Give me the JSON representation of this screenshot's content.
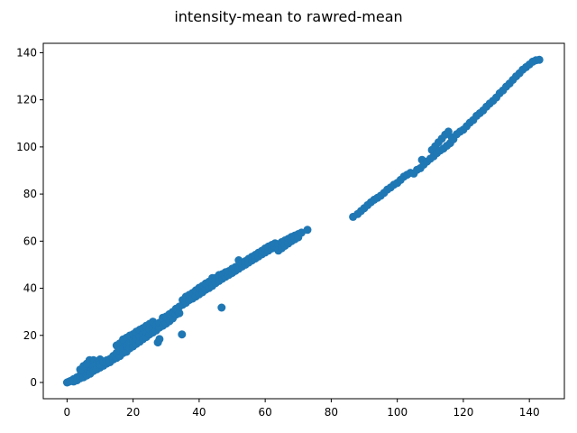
{
  "chart_data": {
    "type": "scatter",
    "title": "intensity-mean to rawred-mean",
    "xlabel": "",
    "ylabel": "",
    "xlim": [
      -7.2,
      150.6
    ],
    "ylim": [
      -6.9,
      144.0
    ],
    "xticks": [
      0,
      20,
      40,
      60,
      80,
      100,
      120,
      140
    ],
    "yticks": [
      0,
      20,
      40,
      60,
      80,
      100,
      120,
      140
    ],
    "grid": false,
    "color": "#1f77b4",
    "series": [
      {
        "points": [
          [
            0.0,
            0.0
          ],
          [
            0.5,
            0.3
          ],
          [
            1.0,
            0.6
          ],
          [
            1.5,
            0.8
          ],
          [
            2.0,
            1.4
          ],
          [
            2.5,
            1.5
          ],
          [
            3.0,
            2.2
          ],
          [
            3.5,
            2.3
          ],
          [
            4.0,
            3.1
          ],
          [
            4.5,
            3.0
          ],
          [
            5.0,
            3.7
          ],
          [
            5.5,
            3.9
          ],
          [
            6.0,
            4.6
          ],
          [
            6.5,
            4.8
          ],
          [
            7.0,
            5.5
          ],
          [
            7.5,
            5.4
          ],
          [
            4.0,
            5.5
          ],
          [
            5.0,
            7.0
          ],
          [
            6.0,
            8.0
          ],
          [
            6.8,
            9.5
          ],
          [
            8.0,
            9.5
          ],
          [
            9.0,
            8.0
          ],
          [
            10.0,
            9.8
          ],
          [
            8.0,
            6.8
          ],
          [
            2.0,
            0.4
          ],
          [
            3.0,
            0.9
          ],
          [
            4.0,
            1.8
          ],
          [
            5.0,
            2.2
          ],
          [
            6.0,
            3.0
          ],
          [
            7.0,
            3.7
          ],
          [
            8.0,
            4.9
          ],
          [
            9.0,
            5.6
          ],
          [
            10.0,
            6.3
          ],
          [
            11.0,
            7.1
          ],
          [
            12.0,
            8.0
          ],
          [
            10.0,
            7.6
          ],
          [
            11.0,
            8.7
          ],
          [
            12.0,
            9.4
          ],
          [
            13.0,
            10.0
          ],
          [
            13.0,
            8.6
          ],
          [
            14.0,
            9.8
          ],
          [
            14.0,
            11.3
          ],
          [
            15.0,
            10.4
          ],
          [
            15.0,
            12.5
          ],
          [
            15.0,
            15.7
          ],
          [
            16.0,
            11.2
          ],
          [
            16.0,
            13.6
          ],
          [
            16.0,
            16.6
          ],
          [
            17.0,
            12.5
          ],
          [
            17.0,
            14.8
          ],
          [
            17.0,
            18.3
          ],
          [
            18.0,
            13.0
          ],
          [
            18.0,
            15.6
          ],
          [
            18.0,
            19.0
          ],
          [
            19.0,
            14.5
          ],
          [
            19.0,
            16.8
          ],
          [
            19.0,
            19.9
          ],
          [
            20.0,
            15.3
          ],
          [
            20.0,
            17.6
          ],
          [
            20.0,
            20.5
          ],
          [
            21.0,
            16.4
          ],
          [
            21.0,
            18.7
          ],
          [
            21.0,
            21.6
          ],
          [
            22.0,
            17.3
          ],
          [
            22.0,
            19.4
          ],
          [
            22.0,
            22.4
          ],
          [
            23.0,
            18.4
          ],
          [
            23.0,
            20.8
          ],
          [
            23.0,
            23.1
          ],
          [
            24.0,
            19.3
          ],
          [
            24.0,
            21.5
          ],
          [
            24.0,
            24.1
          ],
          [
            25.0,
            20.4
          ],
          [
            25.0,
            22.6
          ],
          [
            25.0,
            24.9
          ],
          [
            26.0,
            21.2
          ],
          [
            26.0,
            23.3
          ],
          [
            26.0,
            25.8
          ],
          [
            27.0,
            22.1
          ],
          [
            27.0,
            24.2
          ],
          [
            27.5,
            17.0
          ],
          [
            28.0,
            23.3
          ],
          [
            28.0,
            25.4
          ],
          [
            28.0,
            18.4
          ],
          [
            29.0,
            24.1
          ],
          [
            29.0,
            27.5
          ],
          [
            30.0,
            25.0
          ],
          [
            30.0,
            28.0
          ],
          [
            31.0,
            26.0
          ],
          [
            31.0,
            29.0
          ],
          [
            32.0,
            27.2
          ],
          [
            32.0,
            30.0
          ],
          [
            33.0,
            28.8
          ],
          [
            33.0,
            31.3
          ],
          [
            34.0,
            29.4
          ],
          [
            34.0,
            32.2
          ],
          [
            34.8,
            20.4
          ],
          [
            35.0,
            33.0
          ],
          [
            35.0,
            35.0
          ],
          [
            36.0,
            33.8
          ],
          [
            36.0,
            36.4
          ],
          [
            37.0,
            35.0
          ],
          [
            37.0,
            37.2
          ],
          [
            38.0,
            35.6
          ],
          [
            38.0,
            38.0
          ],
          [
            39.0,
            36.5
          ],
          [
            39.0,
            39.1
          ],
          [
            40.0,
            37.4
          ],
          [
            40.0,
            40.2
          ],
          [
            41.0,
            38.3
          ],
          [
            41.0,
            41.0
          ],
          [
            42.0,
            39.4
          ],
          [
            42.0,
            42.0
          ],
          [
            43.0,
            40.1
          ],
          [
            43.0,
            42.8
          ],
          [
            44.0,
            41.0
          ],
          [
            44.0,
            44.3
          ],
          [
            45.0,
            42.2
          ],
          [
            45.0,
            44.4
          ],
          [
            46.0,
            43.1
          ],
          [
            46.0,
            45.6
          ],
          [
            46.8,
            31.8
          ],
          [
            47.0,
            44.0
          ],
          [
            47.0,
            46.0
          ],
          [
            48.0,
            44.9
          ],
          [
            48.0,
            46.8
          ],
          [
            49.0,
            45.7
          ],
          [
            49.0,
            47.3
          ],
          [
            50.0,
            46.5
          ],
          [
            50.0,
            48.3
          ],
          [
            51.0,
            47.4
          ],
          [
            51.0,
            49.0
          ],
          [
            52.0,
            48.3
          ],
          [
            52.0,
            51.9
          ],
          [
            53.0,
            49.2
          ],
          [
            53.0,
            50.6
          ],
          [
            54.0,
            50.0
          ],
          [
            54.0,
            51.5
          ],
          [
            55.0,
            50.9
          ],
          [
            55.0,
            52.5
          ],
          [
            56.0,
            51.8
          ],
          [
            56.0,
            53.4
          ],
          [
            57.0,
            52.6
          ],
          [
            57.0,
            54.2
          ],
          [
            58.0,
            53.5
          ],
          [
            58.0,
            55.1
          ],
          [
            59.0,
            54.4
          ],
          [
            59.0,
            55.9
          ],
          [
            60.0,
            55.2
          ],
          [
            60.0,
            56.9
          ],
          [
            61.0,
            56.0
          ],
          [
            61.0,
            57.7
          ],
          [
            62.0,
            56.9
          ],
          [
            62.0,
            58.4
          ],
          [
            63.0,
            57.8
          ],
          [
            63.0,
            59.1
          ],
          [
            64.0,
            58.7
          ],
          [
            64.0,
            56.0
          ],
          [
            65.0,
            59.6
          ],
          [
            65.0,
            57.0
          ],
          [
            66.0,
            60.3
          ],
          [
            66.0,
            58.0
          ],
          [
            67.0,
            61.0
          ],
          [
            67.0,
            59.0
          ],
          [
            68.0,
            61.8
          ],
          [
            68.0,
            60.0
          ],
          [
            69.0,
            62.4
          ],
          [
            69.0,
            60.8
          ],
          [
            70.0,
            63.0
          ],
          [
            70.0,
            61.6
          ],
          [
            71.0,
            63.6
          ],
          [
            72.8,
            64.8
          ],
          [
            86.6,
            70.3
          ],
          [
            88.0,
            71.5
          ],
          [
            89.0,
            72.8
          ],
          [
            90.0,
            74.0
          ],
          [
            91.0,
            75.3
          ],
          [
            92.0,
            76.5
          ],
          [
            93.0,
            77.6
          ],
          [
            94.0,
            78.4
          ],
          [
            95.0,
            79.3
          ],
          [
            96.0,
            80.5
          ],
          [
            97.0,
            81.9
          ],
          [
            98.0,
            82.8
          ],
          [
            99.0,
            84.0
          ],
          [
            100.0,
            84.7
          ],
          [
            101.0,
            86.0
          ],
          [
            102.0,
            87.4
          ],
          [
            103.0,
            88.2
          ],
          [
            104.0,
            89.0
          ],
          [
            105.0,
            88.7
          ],
          [
            106.0,
            90.3
          ],
          [
            107.0,
            91.0
          ],
          [
            107.5,
            94.5
          ],
          [
            108.0,
            92.5
          ],
          [
            109.0,
            93.8
          ],
          [
            110.0,
            95.0
          ],
          [
            110.5,
            98.7
          ],
          [
            111.0,
            96.0
          ],
          [
            111.5,
            100.3
          ],
          [
            112.0,
            97.4
          ],
          [
            112.5,
            102.0
          ],
          [
            113.0,
            98.5
          ],
          [
            113.5,
            103.5
          ],
          [
            114.0,
            99.3
          ],
          [
            114.5,
            105.2
          ],
          [
            115.0,
            100.5
          ],
          [
            115.5,
            106.5
          ],
          [
            116.0,
            101.6
          ],
          [
            116.5,
            104.0
          ],
          [
            117.0,
            103.3
          ],
          [
            118.0,
            105.4
          ],
          [
            119.0,
            106.5
          ],
          [
            120.0,
            107.3
          ],
          [
            121.0,
            108.8
          ],
          [
            122.0,
            110.3
          ],
          [
            123.0,
            111.4
          ],
          [
            124.0,
            113.2
          ],
          [
            125.0,
            114.3
          ],
          [
            126.0,
            115.5
          ],
          [
            127.0,
            117.1
          ],
          [
            128.0,
            118.4
          ],
          [
            129.0,
            119.6
          ],
          [
            130.0,
            121.0
          ],
          [
            131.0,
            122.8
          ],
          [
            132.0,
            124.0
          ],
          [
            133.0,
            125.6
          ],
          [
            134.0,
            126.9
          ],
          [
            135.0,
            128.5
          ],
          [
            136.0,
            130.0
          ],
          [
            137.0,
            131.3
          ],
          [
            138.0,
            132.8
          ],
          [
            139.0,
            133.9
          ],
          [
            140.0,
            135.0
          ],
          [
            141.0,
            136.2
          ],
          [
            142.0,
            136.8
          ],
          [
            143.0,
            137.0
          ]
        ]
      }
    ]
  }
}
